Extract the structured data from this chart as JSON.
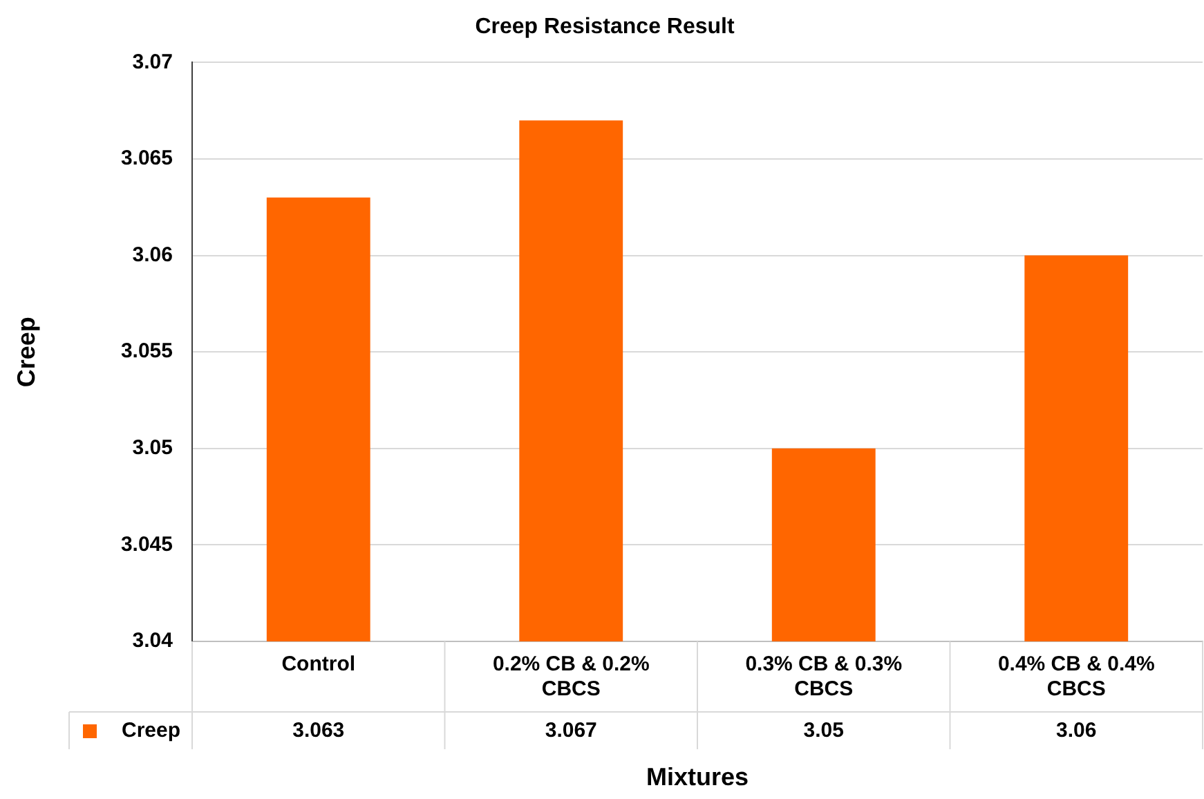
{
  "chart_data": {
    "type": "bar",
    "title": "Creep Resistance Result",
    "xlabel": "Mixtures",
    "ylabel": "Creep",
    "categories": [
      "Control",
      "0.2% CB & 0.2% CBCS",
      "0.3% CB & 0.3% CBCS",
      "0.4% CB & 0.4% CBCS"
    ],
    "series": [
      {
        "name": "Creep",
        "color": "#ff6600",
        "values": [
          3.063,
          3.067,
          3.05,
          3.06
        ]
      }
    ],
    "ylim": [
      3.04,
      3.07
    ],
    "yticks": [
      3.04,
      3.045,
      3.05,
      3.055,
      3.06,
      3.065,
      3.07
    ],
    "grid": "y",
    "data_labels": true
  }
}
